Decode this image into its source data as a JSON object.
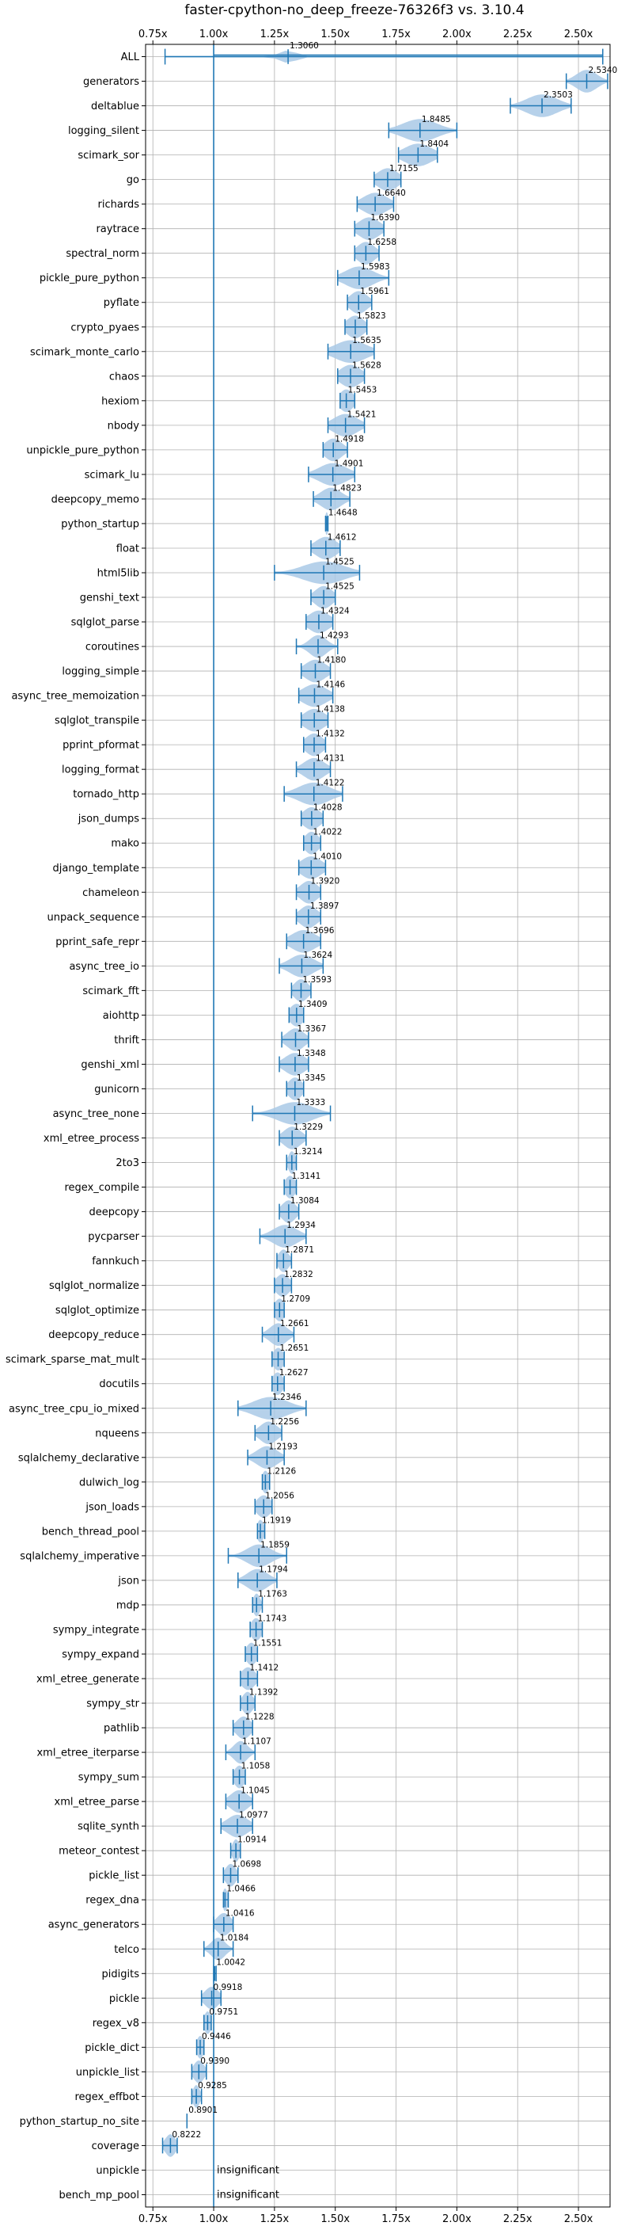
{
  "chart_data": {
    "type": "violin",
    "title": "faster-cpython-no_deep_freeze-76326f3 vs. 3.10.4",
    "xlabel": "",
    "ylabel": "",
    "xlim": [
      0.72,
      2.63
    ],
    "x_ticks": [
      0.75,
      1.0,
      1.25,
      1.5,
      1.75,
      2.0,
      2.25,
      2.5
    ],
    "x_tick_labels": [
      "0.75x",
      "1.00x",
      "1.25x",
      "1.50x",
      "1.75x",
      "2.00x",
      "2.25x",
      "2.50x"
    ],
    "reference_line": 1.0,
    "grid": true,
    "color": "#1f77b4",
    "fill_color": "#a9c9e6",
    "benchmarks": [
      {
        "name": "ALL",
        "value": 1.306,
        "label": "1.3060",
        "min": 0.8,
        "max": 2.6,
        "spread": 0.05
      },
      {
        "name": "generators",
        "value": 2.534,
        "label": "2.5340",
        "min": 2.45,
        "max": 2.62,
        "spread": 0.06
      },
      {
        "name": "deltablue",
        "value": 2.3503,
        "label": "2.3503",
        "min": 2.22,
        "max": 2.47,
        "spread": 0.09
      },
      {
        "name": "logging_silent",
        "value": 1.8485,
        "label": "1.8485",
        "min": 1.72,
        "max": 2.0,
        "spread": 0.1
      },
      {
        "name": "scimark_sor",
        "value": 1.8404,
        "label": "1.8404",
        "min": 1.76,
        "max": 1.92,
        "spread": 0.08
      },
      {
        "name": "go",
        "value": 1.7155,
        "label": "1.7155",
        "min": 1.66,
        "max": 1.77,
        "spread": 0.06
      },
      {
        "name": "richards",
        "value": 1.664,
        "label": "1.6640",
        "min": 1.59,
        "max": 1.74,
        "spread": 0.07
      },
      {
        "name": "raytrace",
        "value": 1.639,
        "label": "1.6390",
        "min": 1.58,
        "max": 1.7,
        "spread": 0.06
      },
      {
        "name": "spectral_norm",
        "value": 1.6258,
        "label": "1.6258",
        "min": 1.58,
        "max": 1.68,
        "spread": 0.05
      },
      {
        "name": "pickle_pure_python",
        "value": 1.5983,
        "label": "1.5983",
        "min": 1.51,
        "max": 1.72,
        "spread": 0.08
      },
      {
        "name": "pyflate",
        "value": 1.5961,
        "label": "1.5961",
        "min": 1.55,
        "max": 1.65,
        "spread": 0.05
      },
      {
        "name": "crypto_pyaes",
        "value": 1.5823,
        "label": "1.5823",
        "min": 1.54,
        "max": 1.63,
        "spread": 0.05
      },
      {
        "name": "scimark_monte_carlo",
        "value": 1.5635,
        "label": "1.5635",
        "min": 1.47,
        "max": 1.66,
        "spread": 0.09
      },
      {
        "name": "chaos",
        "value": 1.5628,
        "label": "1.5628",
        "min": 1.51,
        "max": 1.62,
        "spread": 0.06
      },
      {
        "name": "hexiom",
        "value": 1.5453,
        "label": "1.5453",
        "min": 1.52,
        "max": 1.58,
        "spread": 0.04
      },
      {
        "name": "nbody",
        "value": 1.5421,
        "label": "1.5421",
        "min": 1.47,
        "max": 1.62,
        "spread": 0.07
      },
      {
        "name": "unpickle_pure_python",
        "value": 1.4918,
        "label": "1.4918",
        "min": 1.45,
        "max": 1.55,
        "spread": 0.05
      },
      {
        "name": "scimark_lu",
        "value": 1.4901,
        "label": "1.4901",
        "min": 1.39,
        "max": 1.58,
        "spread": 0.08
      },
      {
        "name": "deepcopy_memo",
        "value": 1.4823,
        "label": "1.4823",
        "min": 1.41,
        "max": 1.56,
        "spread": 0.06
      },
      {
        "name": "python_startup",
        "value": 1.4648,
        "label": "1.4648",
        "min": 1.46,
        "max": 1.47,
        "spread": 0.01
      },
      {
        "name": "float",
        "value": 1.4612,
        "label": "1.4612",
        "min": 1.4,
        "max": 1.52,
        "spread": 0.06
      },
      {
        "name": "html5lib",
        "value": 1.4525,
        "label": "1.4525",
        "min": 1.25,
        "max": 1.6,
        "spread": 0.12
      },
      {
        "name": "genshi_text",
        "value": 1.4525,
        "label": "1.4525",
        "min": 1.4,
        "max": 1.5,
        "spread": 0.05
      },
      {
        "name": "sqlglot_parse",
        "value": 1.4324,
        "label": "1.4324",
        "min": 1.38,
        "max": 1.49,
        "spread": 0.06
      },
      {
        "name": "coroutines",
        "value": 1.4293,
        "label": "1.4293",
        "min": 1.34,
        "max": 1.51,
        "spread": 0.05
      },
      {
        "name": "logging_simple",
        "value": 1.418,
        "label": "1.4180",
        "min": 1.36,
        "max": 1.48,
        "spread": 0.06
      },
      {
        "name": "async_tree_memoization",
        "value": 1.4146,
        "label": "1.4146",
        "min": 1.35,
        "max": 1.49,
        "spread": 0.07
      },
      {
        "name": "sqlglot_transpile",
        "value": 1.4138,
        "label": "1.4138",
        "min": 1.36,
        "max": 1.47,
        "spread": 0.06
      },
      {
        "name": "pprint_pformat",
        "value": 1.4132,
        "label": "1.4132",
        "min": 1.37,
        "max": 1.46,
        "spread": 0.05
      },
      {
        "name": "logging_format",
        "value": 1.4131,
        "label": "1.4131",
        "min": 1.34,
        "max": 1.48,
        "spread": 0.06
      },
      {
        "name": "tornado_http",
        "value": 1.4122,
        "label": "1.4122",
        "min": 1.29,
        "max": 1.53,
        "spread": 0.09
      },
      {
        "name": "json_dumps",
        "value": 1.4028,
        "label": "1.4028",
        "min": 1.36,
        "max": 1.45,
        "spread": 0.05
      },
      {
        "name": "mako",
        "value": 1.4022,
        "label": "1.4022",
        "min": 1.37,
        "max": 1.44,
        "spread": 0.04
      },
      {
        "name": "django_template",
        "value": 1.401,
        "label": "1.4010",
        "min": 1.35,
        "max": 1.46,
        "spread": 0.06
      },
      {
        "name": "chameleon",
        "value": 1.392,
        "label": "1.3920",
        "min": 1.34,
        "max": 1.44,
        "spread": 0.05
      },
      {
        "name": "unpack_sequence",
        "value": 1.3897,
        "label": "1.3897",
        "min": 1.34,
        "max": 1.44,
        "spread": 0.05
      },
      {
        "name": "pprint_safe_repr",
        "value": 1.3696,
        "label": "1.3696",
        "min": 1.3,
        "max": 1.44,
        "spread": 0.07
      },
      {
        "name": "async_tree_io",
        "value": 1.3624,
        "label": "1.3624",
        "min": 1.27,
        "max": 1.45,
        "spread": 0.07
      },
      {
        "name": "scimark_fft",
        "value": 1.3593,
        "label": "1.3593",
        "min": 1.32,
        "max": 1.4,
        "spread": 0.04
      },
      {
        "name": "aiohttp",
        "value": 1.3409,
        "label": "1.3409",
        "min": 1.31,
        "max": 1.37,
        "spread": 0.04
      },
      {
        "name": "thrift",
        "value": 1.3367,
        "label": "1.3367",
        "min": 1.28,
        "max": 1.39,
        "spread": 0.05
      },
      {
        "name": "genshi_xml",
        "value": 1.3348,
        "label": "1.3348",
        "min": 1.27,
        "max": 1.39,
        "spread": 0.06
      },
      {
        "name": "gunicorn",
        "value": 1.3345,
        "label": "1.3345",
        "min": 1.3,
        "max": 1.37,
        "spread": 0.04
      },
      {
        "name": "async_tree_none",
        "value": 1.3333,
        "label": "1.3333",
        "min": 1.16,
        "max": 1.48,
        "spread": 0.1
      },
      {
        "name": "xml_etree_process",
        "value": 1.3229,
        "label": "1.3229",
        "min": 1.27,
        "max": 1.38,
        "spread": 0.05
      },
      {
        "name": "2to3",
        "value": 1.3214,
        "label": "1.3214",
        "min": 1.3,
        "max": 1.34,
        "spread": 0.02
      },
      {
        "name": "regex_compile",
        "value": 1.3141,
        "label": "1.3141",
        "min": 1.29,
        "max": 1.34,
        "spread": 0.03
      },
      {
        "name": "deepcopy",
        "value": 1.3084,
        "label": "1.3084",
        "min": 1.27,
        "max": 1.35,
        "spread": 0.04
      },
      {
        "name": "pycparser",
        "value": 1.2934,
        "label": "1.2934",
        "min": 1.19,
        "max": 1.38,
        "spread": 0.07
      },
      {
        "name": "fannkuch",
        "value": 1.2871,
        "label": "1.2871",
        "min": 1.26,
        "max": 1.32,
        "spread": 0.03
      },
      {
        "name": "sqlglot_normalize",
        "value": 1.2832,
        "label": "1.2832",
        "min": 1.25,
        "max": 1.32,
        "spread": 0.04
      },
      {
        "name": "sqlglot_optimize",
        "value": 1.2709,
        "label": "1.2709",
        "min": 1.25,
        "max": 1.29,
        "spread": 0.03
      },
      {
        "name": "deepcopy_reduce",
        "value": 1.2661,
        "label": "1.2661",
        "min": 1.2,
        "max": 1.33,
        "spread": 0.05
      },
      {
        "name": "scimark_sparse_mat_mult",
        "value": 1.2651,
        "label": "1.2651",
        "min": 1.24,
        "max": 1.29,
        "spread": 0.03
      },
      {
        "name": "docutils",
        "value": 1.2627,
        "label": "1.2627",
        "min": 1.24,
        "max": 1.29,
        "spread": 0.03
      },
      {
        "name": "async_tree_cpu_io_mixed",
        "value": 1.2346,
        "label": "1.2346",
        "min": 1.1,
        "max": 1.38,
        "spread": 0.1
      },
      {
        "name": "nqueens",
        "value": 1.2256,
        "label": "1.2256",
        "min": 1.17,
        "max": 1.28,
        "spread": 0.05
      },
      {
        "name": "sqlalchemy_declarative",
        "value": 1.2193,
        "label": "1.2193",
        "min": 1.14,
        "max": 1.29,
        "spread": 0.06
      },
      {
        "name": "dulwich_log",
        "value": 1.2126,
        "label": "1.2126",
        "min": 1.2,
        "max": 1.23,
        "spread": 0.02
      },
      {
        "name": "json_loads",
        "value": 1.2056,
        "label": "1.2056",
        "min": 1.17,
        "max": 1.24,
        "spread": 0.04
      },
      {
        "name": "bench_thread_pool",
        "value": 1.1919,
        "label": "1.1919",
        "min": 1.18,
        "max": 1.21,
        "spread": 0.02
      },
      {
        "name": "sqlalchemy_imperative",
        "value": 1.1859,
        "label": "1.1859",
        "min": 1.06,
        "max": 1.3,
        "spread": 0.07
      },
      {
        "name": "json",
        "value": 1.1794,
        "label": "1.1794",
        "min": 1.1,
        "max": 1.26,
        "spread": 0.06
      },
      {
        "name": "mdp",
        "value": 1.1763,
        "label": "1.1763",
        "min": 1.16,
        "max": 1.2,
        "spread": 0.02
      },
      {
        "name": "sympy_integrate",
        "value": 1.1743,
        "label": "1.1743",
        "min": 1.15,
        "max": 1.2,
        "spread": 0.03
      },
      {
        "name": "sympy_expand",
        "value": 1.1551,
        "label": "1.1551",
        "min": 1.13,
        "max": 1.18,
        "spread": 0.03
      },
      {
        "name": "xml_etree_generate",
        "value": 1.1412,
        "label": "1.1412",
        "min": 1.11,
        "max": 1.18,
        "spread": 0.04
      },
      {
        "name": "sympy_str",
        "value": 1.1392,
        "label": "1.1392",
        "min": 1.11,
        "max": 1.17,
        "spread": 0.03
      },
      {
        "name": "pathlib",
        "value": 1.1228,
        "label": "1.1228",
        "min": 1.08,
        "max": 1.16,
        "spread": 0.04
      },
      {
        "name": "xml_etree_iterparse",
        "value": 1.1107,
        "label": "1.1107",
        "min": 1.05,
        "max": 1.17,
        "spread": 0.04
      },
      {
        "name": "sympy_sum",
        "value": 1.1058,
        "label": "1.1058",
        "min": 1.08,
        "max": 1.13,
        "spread": 0.03
      },
      {
        "name": "xml_etree_parse",
        "value": 1.1045,
        "label": "1.1045",
        "min": 1.05,
        "max": 1.16,
        "spread": 0.05
      },
      {
        "name": "sqlite_synth",
        "value": 1.0977,
        "label": "1.0977",
        "min": 1.03,
        "max": 1.16,
        "spread": 0.06
      },
      {
        "name": "meteor_contest",
        "value": 1.0914,
        "label": "1.0914",
        "min": 1.07,
        "max": 1.11,
        "spread": 0.02
      },
      {
        "name": "pickle_list",
        "value": 1.0698,
        "label": "1.0698",
        "min": 1.04,
        "max": 1.1,
        "spread": 0.03
      },
      {
        "name": "regex_dna",
        "value": 1.0466,
        "label": "1.0466",
        "min": 1.04,
        "max": 1.06,
        "spread": 0.015
      },
      {
        "name": "async_generators",
        "value": 1.0416,
        "label": "1.0416",
        "min": 1.0,
        "max": 1.08,
        "spread": 0.04
      },
      {
        "name": "telco",
        "value": 1.0184,
        "label": "1.0184",
        "min": 0.96,
        "max": 1.08,
        "spread": 0.04
      },
      {
        "name": "pidigits",
        "value": 1.0042,
        "label": "1.0042",
        "min": 1.0,
        "max": 1.01,
        "spread": 0.0
      },
      {
        "name": "pickle",
        "value": 0.9918,
        "label": "0.9918",
        "min": 0.95,
        "max": 1.03,
        "spread": 0.04
      },
      {
        "name": "regex_v8",
        "value": 0.9751,
        "label": "0.9751",
        "min": 0.96,
        "max": 0.99,
        "spread": 0.02
      },
      {
        "name": "pickle_dict",
        "value": 0.9446,
        "label": "0.9446",
        "min": 0.93,
        "max": 0.96,
        "spread": 0.02
      },
      {
        "name": "unpickle_list",
        "value": 0.939,
        "label": "0.9390",
        "min": 0.91,
        "max": 0.97,
        "spread": 0.03
      },
      {
        "name": "regex_effbot",
        "value": 0.9285,
        "label": "0.9285",
        "min": 0.91,
        "max": 0.95,
        "spread": 0.02
      },
      {
        "name": "python_startup_no_site",
        "value": 0.8901,
        "label": "0.8901",
        "min": 0.89,
        "max": 0.89,
        "spread": 0.0
      },
      {
        "name": "coverage",
        "value": 0.8222,
        "label": "0.8222",
        "min": 0.79,
        "max": 0.85,
        "spread": 0.03
      },
      {
        "name": "unpickle",
        "value": null,
        "label": "insignificant",
        "min": null,
        "max": null,
        "spread": 0.0
      },
      {
        "name": "bench_mp_pool",
        "value": null,
        "label": "insignificant",
        "min": null,
        "max": null,
        "spread": 0.0
      }
    ]
  }
}
